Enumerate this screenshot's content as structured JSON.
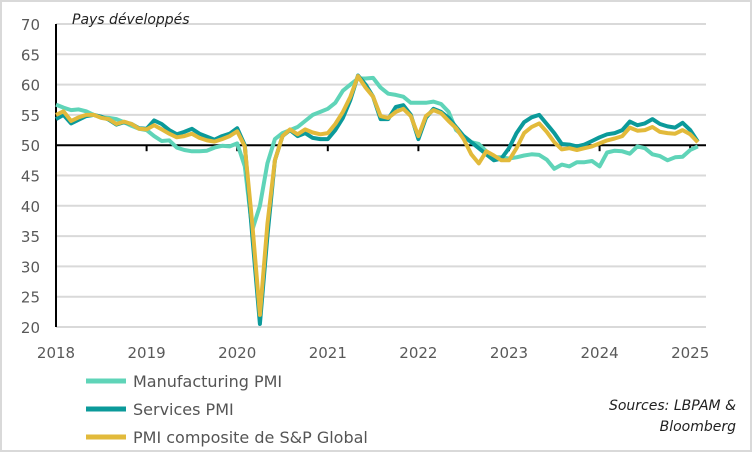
{
  "chart_data": {
    "type": "line",
    "title": "Pays développés",
    "xlabel": "",
    "ylabel": "",
    "x_start": "2018-01",
    "x_frequency": "monthly",
    "x_ticks": [
      "2018",
      "2019",
      "2020",
      "2021",
      "2022",
      "2023",
      "2024",
      "2025"
    ],
    "y_ticks": [
      20,
      25,
      30,
      35,
      40,
      45,
      50,
      55,
      60,
      65,
      70
    ],
    "ylim": [
      20,
      70
    ],
    "reference_line": 50,
    "grid": "horizontal",
    "legend_position": "bottom-left",
    "source": "Sources: LBPAM & Bloomberg",
    "source_lines": [
      "Sources: LBPAM &",
      "Bloomberg"
    ],
    "series": [
      {
        "name": "Manufacturing PMI",
        "color": "#5fd4b8",
        "values": [
          56.7,
          56.2,
          55.8,
          55.9,
          55.6,
          55.0,
          54.6,
          54.5,
          54.3,
          53.8,
          53.2,
          52.7,
          52.5,
          51.5,
          50.7,
          50.8,
          49.6,
          49.2,
          49.0,
          49.0,
          49.1,
          49.6,
          49.9,
          49.8,
          50.3,
          46.5,
          36.0,
          40.0,
          47.0,
          51.0,
          52.0,
          52.5,
          53.0,
          54.0,
          55.0,
          55.5,
          56.0,
          57.0,
          59.0,
          60.0,
          61.0,
          61.0,
          61.1,
          59.5,
          58.5,
          58.3,
          58.0,
          57.0,
          57.0,
          57.0,
          57.2,
          56.8,
          55.5,
          52.5,
          51.5,
          50.5,
          50.2,
          49.0,
          48.0,
          48.0,
          47.8,
          48.0,
          48.3,
          48.5,
          48.4,
          47.6,
          46.1,
          46.8,
          46.5,
          47.2,
          47.2,
          47.4,
          46.5,
          48.8,
          49.1,
          49.0,
          48.6,
          49.8,
          49.5,
          48.5,
          48.2,
          47.5,
          48.0,
          48.1,
          49.2,
          49.8
        ]
      },
      {
        "name": "Services PMI",
        "color": "#0b9a9a",
        "values": [
          54.3,
          55.0,
          53.6,
          54.2,
          54.8,
          55.0,
          54.7,
          54.2,
          53.4,
          53.8,
          53.5,
          52.8,
          52.7,
          54.1,
          53.5,
          52.5,
          51.8,
          52.2,
          52.7,
          51.9,
          51.4,
          50.9,
          51.5,
          51.9,
          52.8,
          50.0,
          35.0,
          20.5,
          35.0,
          47.5,
          51.5,
          52.5,
          51.5,
          52.0,
          51.2,
          51.0,
          51.0,
          52.5,
          54.5,
          57.5,
          61.5,
          60.0,
          58.0,
          54.3,
          54.3,
          56.3,
          56.6,
          55.0,
          51.0,
          54.5,
          56.0,
          55.5,
          54.5,
          53.0,
          51.5,
          50.5,
          49.5,
          48.5,
          47.5,
          47.8,
          49.5,
          52.0,
          53.8,
          54.6,
          55.0,
          53.5,
          52.0,
          50.2,
          50.1,
          49.8,
          50.1,
          50.7,
          51.3,
          51.8,
          52.0,
          52.5,
          53.9,
          53.3,
          53.6,
          54.3,
          53.5,
          53.1,
          52.9,
          53.7,
          52.5,
          50.6
        ]
      },
      {
        "name": "PMI composite de S&P Global",
        "color": "#e2ba3b",
        "values": [
          55.0,
          55.6,
          54.0,
          54.6,
          55.0,
          55.0,
          54.5,
          54.3,
          53.5,
          53.9,
          53.5,
          52.7,
          52.6,
          53.3,
          52.6,
          51.9,
          51.3,
          51.5,
          51.9,
          51.2,
          50.8,
          50.6,
          51.0,
          51.5,
          52.3,
          49.8,
          37.0,
          22.0,
          37.0,
          47.5,
          51.5,
          52.6,
          51.8,
          52.6,
          52.1,
          51.8,
          52.0,
          53.5,
          55.5,
          58.0,
          61.4,
          59.5,
          58.0,
          54.8,
          54.5,
          55.5,
          56.0,
          54.8,
          51.5,
          54.8,
          55.8,
          55.3,
          54.0,
          52.8,
          51.0,
          48.5,
          47.0,
          49.0,
          48.3,
          47.5,
          47.5,
          49.5,
          52.0,
          53.0,
          53.6,
          52.2,
          50.5,
          49.3,
          49.5,
          49.2,
          49.5,
          49.8,
          50.3,
          50.8,
          51.1,
          51.5,
          52.9,
          52.4,
          52.5,
          53.0,
          52.2,
          52.0,
          51.9,
          52.5,
          51.8,
          50.5
        ]
      }
    ]
  }
}
